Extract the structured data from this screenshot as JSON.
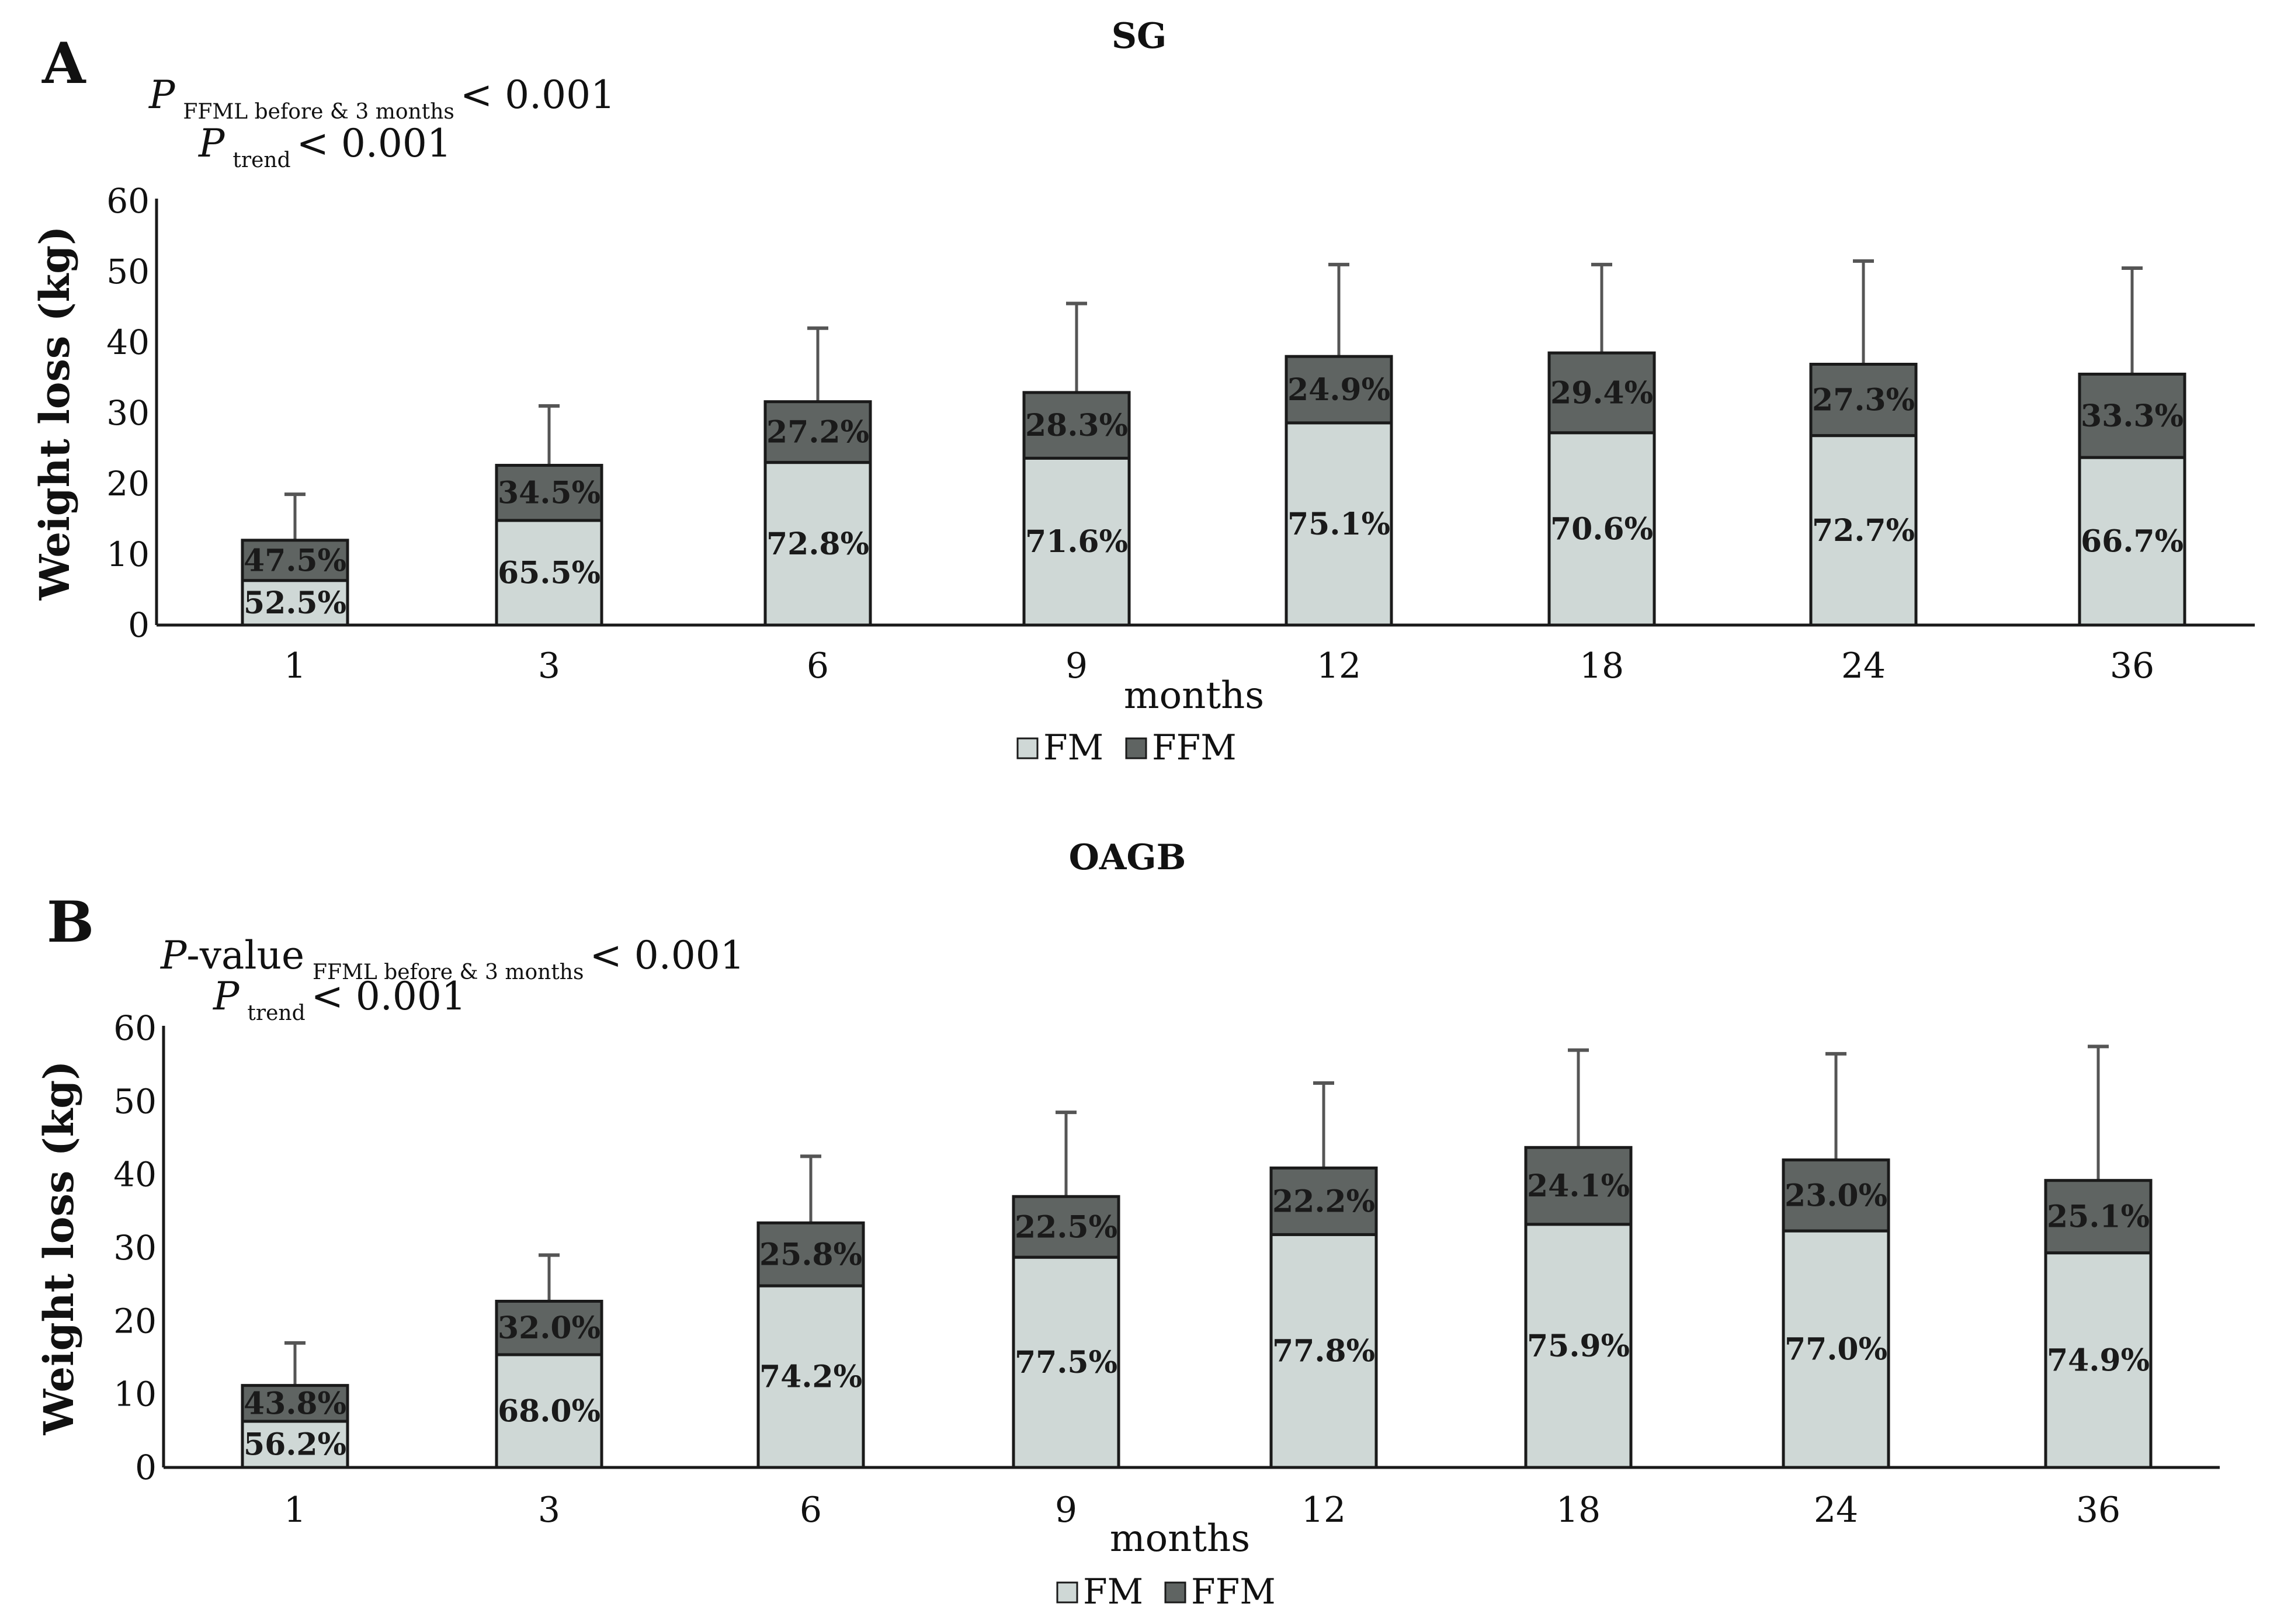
{
  "colors": {
    "fm": "#cfd8d6",
    "ffm": "#5f6462",
    "axis": "#1a1a1a",
    "errorbar": "#555555"
  },
  "legend": {
    "fm_label": "FM",
    "ffm_label": "FFM"
  },
  "chart_data": [
    {
      "type": "bar",
      "stacked": true,
      "panel_letter": "A",
      "title": "SG",
      "annotations": [
        {
          "main": "P",
          "sub": "FFML before & 3 months",
          "tail": "< 0.001"
        },
        {
          "main": "P",
          "sub": "trend",
          "tail": "< 0.001"
        }
      ],
      "xlabel": "months",
      "ylabel": "Weight loss (kg)",
      "ylim": [
        0,
        60
      ],
      "yticks": [
        "0",
        "10",
        "20",
        "30",
        "40",
        "50",
        "60"
      ],
      "categories": [
        "1",
        "3",
        "6",
        "9",
        "12",
        "18",
        "24",
        "36"
      ],
      "series": [
        {
          "name": "FM",
          "values": [
            6.3,
            14.8,
            23.0,
            23.6,
            28.6,
            27.2,
            26.8,
            23.7
          ],
          "labels": [
            "52.5%",
            "65.5%",
            "72.8%",
            "71.6%",
            "75.1%",
            "70.6%",
            "72.7%",
            "66.7%"
          ]
        },
        {
          "name": "FFM",
          "values": [
            5.7,
            7.8,
            8.6,
            9.3,
            9.4,
            11.3,
            10.1,
            11.8
          ],
          "labels": [
            "47.5%",
            "34.5%",
            "27.2%",
            "28.3%",
            "24.9%",
            "29.4%",
            "27.3%",
            "33.3%"
          ]
        }
      ],
      "totals": [
        12.0,
        22.6,
        31.6,
        32.9,
        38.0,
        38.5,
        36.9,
        35.5
      ],
      "error_upper": [
        18.5,
        31.0,
        42.0,
        45.5,
        51.0,
        51.0,
        51.5,
        50.5
      ]
    },
    {
      "type": "bar",
      "stacked": true,
      "panel_letter": "B",
      "title": "OAGB",
      "annotations": [
        {
          "main": "P-value",
          "sub": "FFML before & 3 months",
          "tail": "< 0.001"
        },
        {
          "main": "P",
          "sub": "trend",
          "tail": "< 0.001"
        }
      ],
      "xlabel": "months",
      "ylabel": "Weight loss (kg)",
      "ylim": [
        0,
        60
      ],
      "yticks": [
        "0",
        "10",
        "20",
        "30",
        "40",
        "50",
        "60"
      ],
      "categories": [
        "1",
        "3",
        "6",
        "9",
        "12",
        "18",
        "24",
        "36"
      ],
      "series": [
        {
          "name": "FM",
          "values": [
            6.3,
            15.4,
            24.8,
            28.7,
            31.8,
            33.2,
            32.3,
            29.3
          ],
          "labels": [
            "56.2%",
            "68.0%",
            "74.2%",
            "77.5%",
            "77.8%",
            "75.9%",
            "77.0%",
            "74.9%"
          ]
        },
        {
          "name": "FFM",
          "values": [
            4.9,
            7.3,
            8.6,
            8.3,
            9.1,
            10.5,
            9.7,
            9.9
          ],
          "labels": [
            "43.8%",
            "32.0%",
            "25.8%",
            "22.5%",
            "22.2%",
            "24.1%",
            "23.0%",
            "25.1%"
          ]
        }
      ],
      "totals": [
        11.2,
        22.7,
        33.4,
        37.0,
        40.9,
        43.7,
        42.0,
        39.2
      ],
      "error_upper": [
        17.0,
        29.0,
        42.5,
        48.5,
        52.5,
        57.0,
        56.5,
        57.5
      ]
    }
  ]
}
